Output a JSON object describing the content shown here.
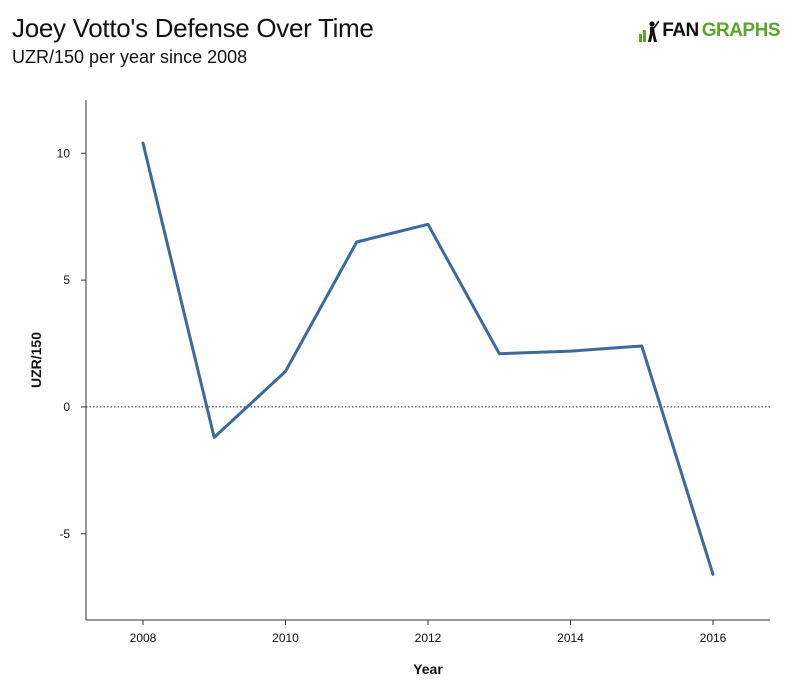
{
  "header": {
    "title": "Joey Votto's Defense Over Time",
    "subtitle": "UZR/150 per year since 2008",
    "logo_part1": "FAN",
    "logo_part2": "GRAPHS"
  },
  "colors": {
    "line": "#3c6a9c",
    "logo_green": "#5aa62a",
    "axis": "#333333"
  },
  "chart_data": {
    "type": "line",
    "title": "Joey Votto's Defense Over Time",
    "subtitle": "UZR/150 per year since 2008",
    "xlabel": "Year",
    "ylabel": "UZR/150",
    "x": [
      2008,
      2009,
      2010,
      2011,
      2012,
      2013,
      2014,
      2015,
      2016
    ],
    "series": [
      {
        "values": [
          10.4,
          -1.2,
          1.4,
          6.5,
          7.2,
          2.1,
          2.2,
          2.4,
          -6.6
        ]
      }
    ],
    "xlim": [
      2007.2,
      2016.8
    ],
    "ylim": [
      -8.4,
      12.1
    ],
    "xticks": [
      2008,
      2010,
      2012,
      2014,
      2016
    ],
    "xtick_labels": [
      "2008",
      "2010",
      "2012",
      "2014",
      "2016"
    ],
    "yticks": [
      10,
      5,
      0,
      -5
    ],
    "ytick_labels": [
      "10",
      "5",
      "0",
      "-5"
    ],
    "zero_line": "dotted",
    "grid": false,
    "legend": "none"
  }
}
